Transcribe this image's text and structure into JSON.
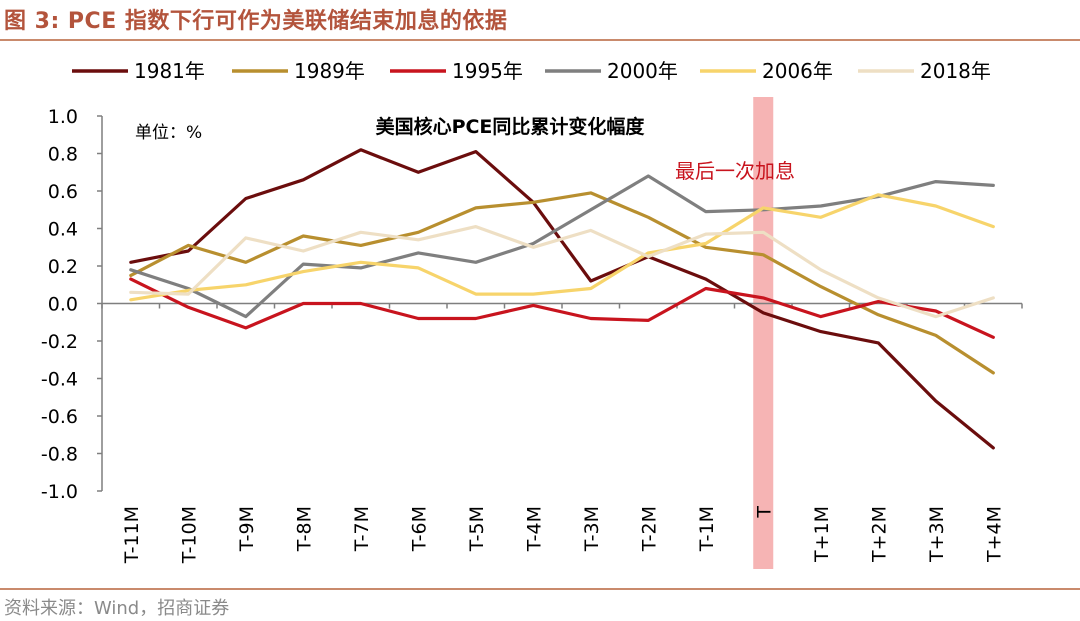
{
  "figure": {
    "title": "图 3:  PCE 指数下行可作为美联储结束加息的依据",
    "source": "资料来源：Wind，招商证券"
  },
  "chart_data": {
    "type": "line",
    "title": "美国核心PCE同比累计变化幅度",
    "unit_label": "单位：%",
    "annotation": "最后一次加息",
    "highlight_category": "T",
    "categories": [
      "T-11M",
      "T-10M",
      "T-9M",
      "T-8M",
      "T-7M",
      "T-6M",
      "T-5M",
      "T-4M",
      "T-3M",
      "T-2M",
      "T-1M",
      "T",
      "T+1M",
      "T+2M",
      "T+3M",
      "T+4M"
    ],
    "ylim": [
      -1.0,
      1.0
    ],
    "yticks": [
      "1.0",
      "0.8",
      "0.6",
      "0.4",
      "0.2",
      "0.0",
      "-0.2",
      "-0.4",
      "-0.6",
      "-0.8",
      "-1.0"
    ],
    "legend_position": "top",
    "series": [
      {
        "name": "1981年",
        "color": "#6b0d0d",
        "values": [
          0.22,
          0.28,
          0.56,
          0.66,
          0.82,
          0.7,
          0.81,
          0.54,
          0.12,
          0.25,
          0.13,
          -0.05,
          -0.15,
          -0.21,
          -0.52,
          -0.77
        ]
      },
      {
        "name": "1989年",
        "color": "#b88f2f",
        "values": [
          0.15,
          0.31,
          0.22,
          0.36,
          0.31,
          0.38,
          0.51,
          0.54,
          0.59,
          0.46,
          0.3,
          0.26,
          0.09,
          -0.06,
          -0.17,
          -0.37
        ]
      },
      {
        "name": "1995年",
        "color": "#c8141e",
        "values": [
          0.13,
          -0.02,
          -0.13,
          0.0,
          0.0,
          -0.08,
          -0.08,
          -0.01,
          -0.08,
          -0.09,
          0.08,
          0.03,
          -0.07,
          0.01,
          -0.04,
          -0.18
        ]
      },
      {
        "name": "2000年",
        "color": "#7f7f7f",
        "values": [
          0.18,
          0.08,
          -0.07,
          0.21,
          0.19,
          0.27,
          0.22,
          0.32,
          0.5,
          0.68,
          0.49,
          0.5,
          0.52,
          0.57,
          0.65,
          0.63
        ]
      },
      {
        "name": "2006年",
        "color": "#f7d46b",
        "values": [
          0.02,
          0.07,
          0.1,
          0.17,
          0.22,
          0.19,
          0.05,
          0.05,
          0.08,
          0.27,
          0.32,
          0.51,
          0.46,
          0.58,
          0.52,
          0.41
        ]
      },
      {
        "name": "2018年",
        "color": "#eedfc4",
        "values": [
          0.06,
          0.05,
          0.35,
          0.28,
          0.38,
          0.34,
          0.41,
          0.3,
          0.39,
          0.25,
          0.37,
          0.38,
          0.18,
          0.03,
          -0.07,
          0.03
        ]
      }
    ]
  }
}
